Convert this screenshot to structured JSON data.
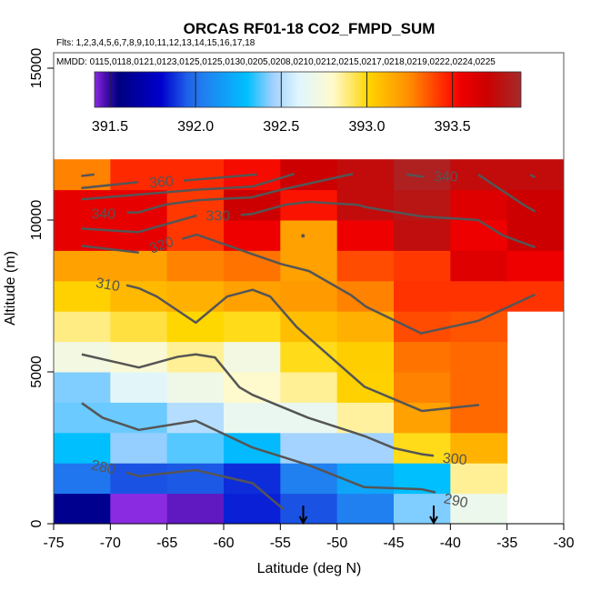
{
  "chart_data": {
    "type": "heatmap",
    "title": "ORCAS RF01-18 CO2_FMPD_SUM",
    "subtitle": "Flts: 1,2,3,4,5,6,7,8,9,10,11,12,13,14,15,16,17,18",
    "annotation": "MMDD: 0115,0118,0121,0123,0125,0125,0130,0205,0208,0210,0212,0215,0217,0218,0219,0222,0224,0225",
    "xlabel": "Latitude (deg N)",
    "ylabel": "Altitude (m)",
    "xlim": [
      -75,
      -30
    ],
    "ylim": [
      0,
      15500
    ],
    "xticks": [
      "-75",
      "-70",
      "-65",
      "-60",
      "-55",
      "-50",
      "-45",
      "-40",
      "-35",
      "-30"
    ],
    "yticks": [
      "0",
      "5000",
      "10000",
      "15000"
    ],
    "x_bin_edges": [
      -75,
      -70,
      -65,
      -60,
      -55,
      -50,
      -45,
      -40,
      -35,
      -30
    ],
    "y_bin_edges": [
      0,
      1000,
      2000,
      3000,
      4000,
      5000,
      6000,
      7000,
      8000,
      9000,
      10000,
      11000,
      12000
    ],
    "values_by_altitude_bottom_to_top": [
      [
        391.6,
        391.4,
        391.45,
        391.85,
        391.93,
        392.05,
        392.42,
        392.68,
        null
      ],
      [
        392.02,
        391.93,
        391.94,
        391.87,
        392.05,
        392.2,
        392.3,
        392.86,
        null
      ],
      [
        392.3,
        392.44,
        392.38,
        392.28,
        392.46,
        392.46,
        392.98,
        393.12,
        null
      ],
      [
        392.4,
        392.4,
        392.5,
        392.66,
        392.66,
        392.85,
        393.18,
        393.32,
        null
      ],
      [
        392.42,
        392.62,
        392.7,
        392.8,
        392.86,
        393.02,
        393.27,
        393.32,
        null
      ],
      [
        392.72,
        392.77,
        392.86,
        392.72,
        392.98,
        393.03,
        393.3,
        393.32,
        null
      ],
      [
        392.88,
        392.95,
        393.0,
        392.98,
        393.08,
        393.13,
        393.38,
        393.36,
        null
      ],
      [
        393.02,
        393.1,
        393.13,
        393.18,
        393.2,
        393.27,
        393.43,
        393.43,
        393.43
      ],
      [
        393.18,
        393.18,
        393.27,
        393.3,
        393.18,
        393.38,
        393.42,
        393.62,
        393.55
      ],
      [
        393.58,
        393.58,
        393.42,
        393.55,
        393.18,
        393.55,
        393.76,
        393.55,
        393.7
      ],
      [
        393.58,
        393.58,
        393.42,
        393.7,
        393.5,
        393.75,
        393.8,
        393.62,
        393.7
      ],
      [
        393.27,
        393.45,
        393.45,
        393.52,
        393.7,
        393.75,
        393.85,
        393.75,
        393.75
      ]
    ],
    "colorbar": {
      "range": [
        391.41,
        393.9
      ],
      "ticks": [
        "391.5",
        "392.0",
        "392.5",
        "393.0",
        "393.5"
      ],
      "tick_values": [
        391.5,
        392.0,
        392.5,
        393.0,
        393.5
      ],
      "stops": [
        [
          391.41,
          "#8a2be2"
        ],
        [
          391.47,
          "#4b0fb0"
        ],
        [
          391.55,
          "#000080"
        ],
        [
          391.8,
          "#0000cd"
        ],
        [
          391.95,
          "#1e60e8"
        ],
        [
          392.05,
          "#2080f0"
        ],
        [
          392.3,
          "#00bfff"
        ],
        [
          392.45,
          "#a0d0ff"
        ],
        [
          392.6,
          "#dff6ff"
        ],
        [
          392.8,
          "#fffacd"
        ],
        [
          392.95,
          "#ffe040"
        ],
        [
          393.0,
          "#ffd700"
        ],
        [
          393.25,
          "#ff8c00"
        ],
        [
          393.48,
          "#ff1a00"
        ],
        [
          393.55,
          "#ee0000"
        ],
        [
          393.7,
          "#cc0000"
        ],
        [
          393.9,
          "#a52a2a"
        ]
      ]
    },
    "contour_color": "#555555",
    "contours": [
      [
        [
          -72.56,
          11450
        ],
        [
          -71.41,
          11500
        ]
      ],
      [
        [
          -72.56,
          11050
        ],
        [
          -67.54,
          11250
        ]
      ],
      [
        [
          -63.52,
          11300
        ],
        [
          -57.06,
          11500
        ]
      ],
      [
        [
          -72.56,
          10680
        ],
        [
          -62.37,
          11000
        ],
        [
          -57.49,
          11100
        ],
        [
          -53.76,
          11520
        ]
      ],
      [
        [
          -68.54,
          10250
        ],
        [
          -67.54,
          10250
        ],
        [
          -65.24,
          10500
        ],
        [
          -62.37,
          10650
        ],
        [
          -57.49,
          10750
        ],
        [
          -54.91,
          11000
        ],
        [
          -48.6,
          11520
        ]
      ],
      [
        [
          -72.56,
          9720
        ],
        [
          -67.54,
          9600
        ],
        [
          -62.37,
          10150
        ]
      ],
      [
        [
          -58.5,
          10170
        ],
        [
          -57.49,
          10200
        ],
        [
          -54.6,
          10500
        ],
        [
          -52.47,
          10600
        ],
        [
          -48.16,
          10500
        ],
        [
          -47.4,
          10420
        ],
        [
          -42.57,
          10120
        ],
        [
          -37.55,
          10000
        ],
        [
          -35.4,
          9500
        ],
        [
          -32.52,
          9100
        ]
      ],
      [
        [
          -72.56,
          9150
        ],
        [
          -67.48,
          8930
        ]
      ],
      [
        [
          -63.66,
          9380
        ],
        [
          -62.37,
          9520
        ],
        [
          -57.49,
          8880
        ],
        [
          -54.91,
          8550
        ],
        [
          -52.47,
          8320
        ],
        [
          -48.74,
          7520
        ],
        [
          -47.45,
          7150
        ],
        [
          -42.57,
          6270
        ],
        [
          -39.99,
          6480
        ],
        [
          -37.55,
          6680
        ],
        [
          -32.52,
          7550
        ]
      ],
      [
        [
          -43.86,
          11500
        ],
        [
          -42.34,
          11420
        ]
      ],
      [
        [
          -37.55,
          11500
        ],
        [
          -33.53,
          10500
        ],
        [
          -32.52,
          10280
        ]
      ],
      [
        [
          -32.95,
          11500
        ],
        [
          -32.52,
          11400
        ]
      ],
      [
        [
          -68.58,
          7853
        ],
        [
          -67.48,
          7753
        ],
        [
          -65.9,
          7482
        ],
        [
          -62.46,
          6620
        ],
        [
          -59.69,
          7482
        ],
        [
          -57.45,
          7703
        ],
        [
          -55.9,
          7482
        ],
        [
          -53.57,
          6479
        ],
        [
          -51.96,
          5948
        ],
        [
          -47.59,
          4514
        ],
        [
          -42.49,
          3711
        ],
        [
          -37.47,
          3912
        ]
      ],
      [
        [
          -72.52,
          5577
        ],
        [
          -67.48,
          5145
        ],
        [
          -64.06,
          5496
        ],
        [
          -62.46,
          5577
        ],
        [
          -60.77,
          5476
        ],
        [
          -58.61,
          4493
        ],
        [
          -57.45,
          4243
        ],
        [
          -52.55,
          3490
        ],
        [
          -47.59,
          2889
        ],
        [
          -44.97,
          2487
        ],
        [
          -42.49,
          2287
        ],
        [
          -41.47,
          2237
        ]
      ],
      [
        [
          -72.52,
          3972
        ],
        [
          -70.68,
          3490
        ],
        [
          -67.48,
          3089
        ],
        [
          -62.46,
          3390
        ],
        [
          -57.45,
          2508
        ],
        [
          -52.55,
          1936
        ],
        [
          -47.59,
          1204
        ],
        [
          -42.49,
          1133
        ],
        [
          -41.32,
          1033
        ]
      ],
      [
        [
          -68.58,
          1685
        ],
        [
          -67.48,
          1565
        ],
        [
          -62.46,
          1765
        ],
        [
          -57.45,
          1334
        ],
        [
          -54.73,
          481
        ]
      ]
    ],
    "contour_labels": [
      {
        "text": "360",
        "lat": -65.5,
        "alt": 11280,
        "angle": -5
      },
      {
        "text": "340",
        "lat": -70.6,
        "alt": 10220,
        "angle": 0
      },
      {
        "text": "330",
        "lat": -60.5,
        "alt": 10170,
        "angle": 0
      },
      {
        "text": "320",
        "lat": -65.5,
        "alt": 9200,
        "angle": -20
      },
      {
        "text": "340",
        "lat": -40.4,
        "alt": 11450,
        "angle": 0
      },
      {
        "text": "310",
        "lat": -70.2,
        "alt": 7900,
        "angle": 10
      },
      {
        "text": "300",
        "lat": -39.6,
        "alt": 2157,
        "angle": 5
      },
      {
        "text": "290",
        "lat": -39.5,
        "alt": 782,
        "angle": 12
      },
      {
        "text": "280",
        "lat": -70.6,
        "alt": 1886,
        "angle": 12
      }
    ],
    "dot": [
      -53.0,
      9480
    ],
    "arrows_lat": [
      -52.98,
      -41.47
    ]
  }
}
